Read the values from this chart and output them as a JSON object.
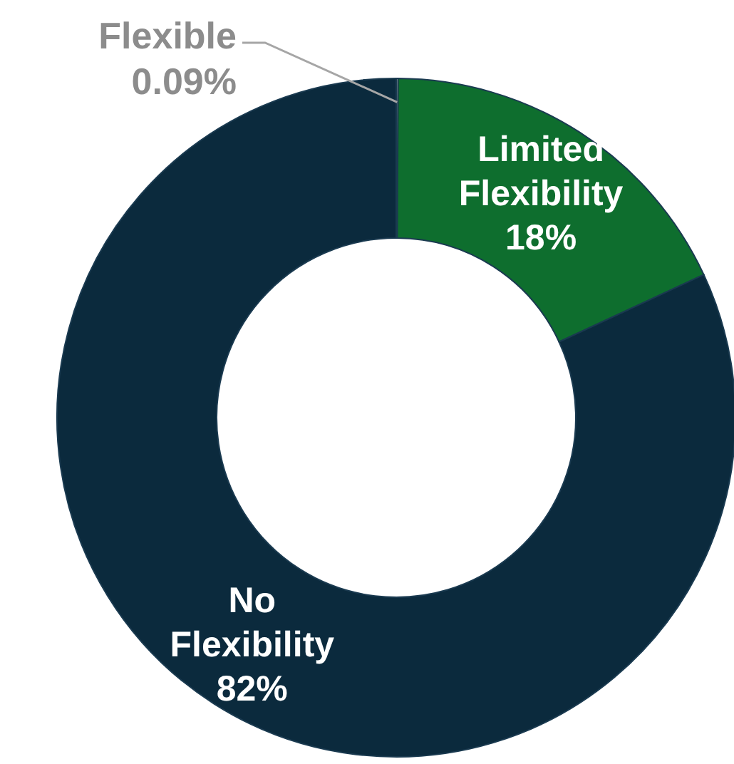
{
  "chart_data": {
    "type": "donut",
    "categories": [
      "Flexible",
      "Limited Flexibility",
      "No Flexibility"
    ],
    "values": [
      0.09,
      18,
      82
    ],
    "colors": [
      "#bfbfbf",
      "#0e6e2e",
      "#0b2a3d"
    ],
    "value_labels": [
      "0.09%",
      "18%",
      "82%"
    ],
    "legend": false
  }
}
